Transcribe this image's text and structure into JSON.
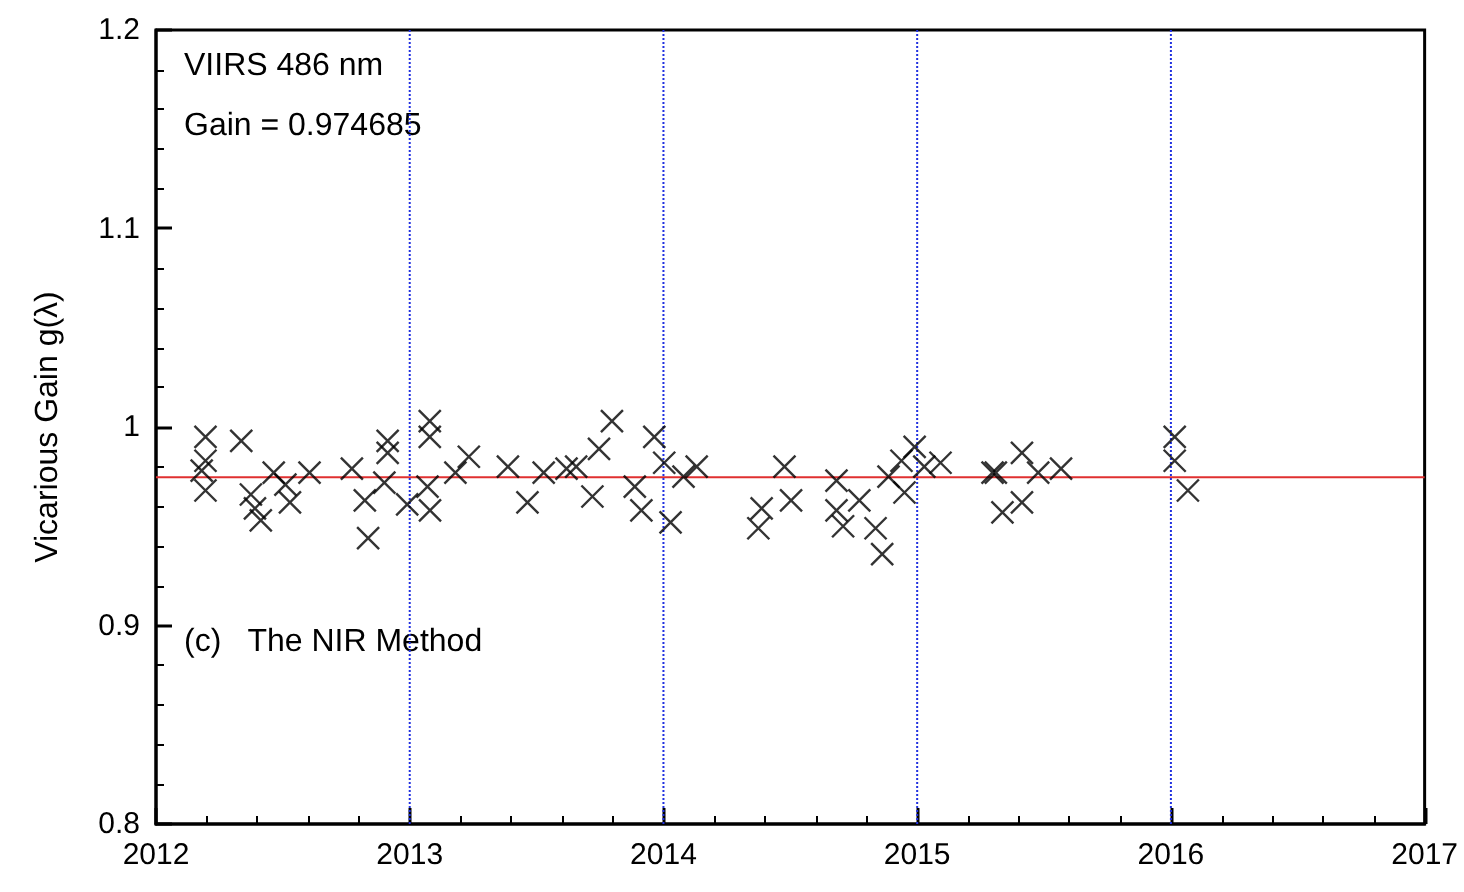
{
  "chart_data": {
    "type": "scatter",
    "ylabel": "Vicarious Gain g(λ)",
    "annotations": [
      "VIIRS 486 nm",
      "Gain = 0.974685",
      "(c)   The NIR Method"
    ],
    "xlim": [
      2012,
      2017
    ],
    "xticks": [
      2012,
      2013,
      2014,
      2015,
      2016,
      2017
    ],
    "ylim": [
      0.8,
      1.2
    ],
    "yticks": [
      0.8,
      0.9,
      1,
      1.1,
      1.2
    ],
    "grid": false,
    "marker": "cross",
    "series": [
      {
        "color": "#000000",
        "x": [
          2012.18,
          2012.195,
          2012.195,
          2012.195,
          2012.336,
          2012.374,
          2012.39,
          2012.413,
          2012.464,
          2012.51,
          2012.528,
          2012.605,
          2012.772,
          2012.823,
          2012.836,
          2012.9,
          2012.913,
          2012.913,
          2012.99,
          2013.07,
          2013.079,
          2013.079,
          2013.08,
          2013.18,
          2013.233,
          2013.387,
          2013.464,
          2013.528,
          2013.618,
          2013.656,
          2013.72,
          2013.746,
          2013.797,
          2013.887,
          2013.913,
          2013.964,
          2014.003,
          2014.028,
          2014.079,
          2014.131,
          2014.374,
          2014.387,
          2014.477,
          2014.503,
          2014.682,
          2014.682,
          2014.708,
          2014.772,
          2014.836,
          2014.862,
          2014.887,
          2014.938,
          2014.95,
          2014.99,
          2015.028,
          2015.092,
          2015.297,
          2015.31,
          2015.336,
          2015.413,
          2015.413,
          2015.477,
          2015.567,
          2016.015,
          2016.015,
          2016.067
        ],
        "values": [
          0.978,
          0.995,
          0.983,
          0.968,
          0.993,
          0.966,
          0.959,
          0.953,
          0.977,
          0.971,
          0.962,
          0.977,
          0.979,
          0.963,
          0.944,
          0.972,
          0.993,
          0.987,
          0.961,
          0.97,
          1.003,
          0.995,
          0.958,
          0.977,
          0.985,
          0.98,
          0.962,
          0.977,
          0.979,
          0.98,
          0.965,
          0.989,
          1.003,
          0.97,
          0.958,
          0.995,
          0.982,
          0.952,
          0.975,
          0.98,
          0.949,
          0.959,
          0.98,
          0.963,
          0.973,
          0.958,
          0.95,
          0.963,
          0.949,
          0.936,
          0.975,
          0.983,
          0.967,
          0.99,
          0.98,
          0.982,
          0.977,
          0.977,
          0.957,
          0.987,
          0.962,
          0.977,
          0.979,
          0.995,
          0.983,
          0.968
        ]
      }
    ],
    "ref_lines": [
      {
        "axis": "y",
        "value": 0.974685,
        "color": "#e03030",
        "line_style": "solid"
      },
      {
        "axis": "x",
        "value": 2013,
        "color": "#2030e0",
        "line_style": "dotted"
      },
      {
        "axis": "x",
        "value": 2014,
        "color": "#2030e0",
        "line_style": "dotted"
      },
      {
        "axis": "x",
        "value": 2015,
        "color": "#2030e0",
        "line_style": "dotted"
      },
      {
        "axis": "x",
        "value": 2016,
        "color": "#2030e0",
        "line_style": "dotted"
      }
    ]
  }
}
